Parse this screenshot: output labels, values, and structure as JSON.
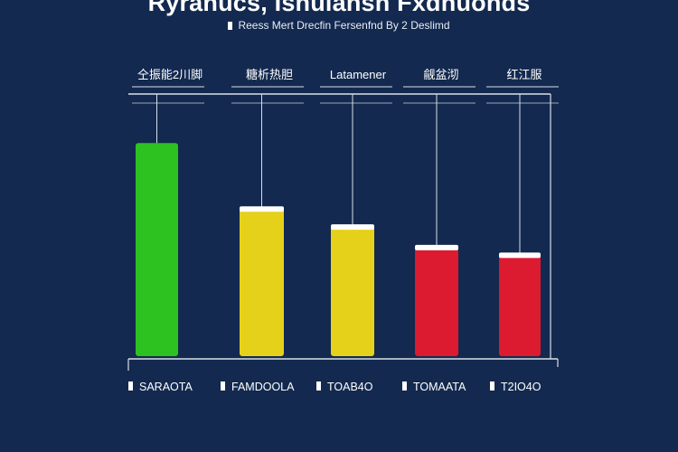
{
  "chart_data": {
    "type": "bar",
    "title": "Ryranucs, Isnulansh Fxdnuonds",
    "subtitle": "Reess Mert Drecfin Fersenfnd By 2 Deslimd",
    "categories": [
      "SARAOTA",
      "FAMDOOLA",
      "TOAB4O",
      "TOMAATA",
      "T2IO4O"
    ],
    "top_labels": [
      "仝振能2川脚",
      "糖析热胆",
      "Latamener",
      "觎盆沏",
      "红江服"
    ],
    "values": [
      83,
      58,
      51,
      43,
      40
    ],
    "ylim": [
      0,
      100
    ],
    "colors": [
      "#2dc21f",
      "#e6d11a",
      "#e6d11a",
      "#dc1a30",
      "#dc1a30"
    ],
    "grid": false,
    "legend": "none"
  }
}
